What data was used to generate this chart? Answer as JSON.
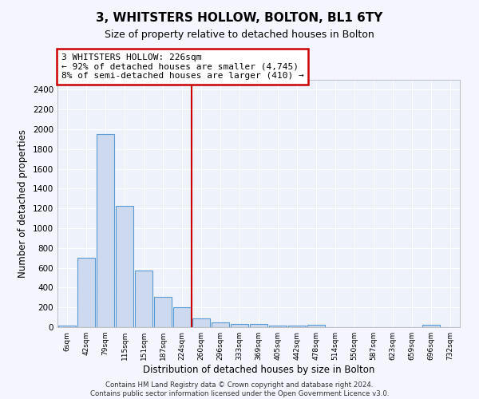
{
  "title": "3, WHITSTERS HOLLOW, BOLTON, BL1 6TY",
  "subtitle": "Size of property relative to detached houses in Bolton",
  "xlabel": "Distribution of detached houses by size in Bolton",
  "ylabel": "Number of detached properties",
  "bar_color": "#ccd9ee",
  "bar_edge_color": "#5b9bd5",
  "background_color": "#eef2fa",
  "grid_color": "#ffffff",
  "annotation_text": "3 WHITSTERS HOLLOW: 226sqm\n← 92% of detached houses are smaller (4,745)\n8% of semi-detached houses are larger (410) →",
  "annotation_box_color": "#ffffff",
  "annotation_box_edge": "#cc0000",
  "vline_color": "#cc0000",
  "vline_x": 6.5,
  "tick_labels": [
    "6sqm",
    "42sqm",
    "79sqm",
    "115sqm",
    "151sqm",
    "187sqm",
    "224sqm",
    "260sqm",
    "296sqm",
    "333sqm",
    "369sqm",
    "405sqm",
    "442sqm",
    "478sqm",
    "514sqm",
    "550sqm",
    "587sqm",
    "623sqm",
    "659sqm",
    "696sqm",
    "732sqm"
  ],
  "bar_heights": [
    20,
    700,
    1950,
    1225,
    575,
    310,
    205,
    85,
    45,
    35,
    35,
    20,
    20,
    25,
    0,
    0,
    0,
    0,
    0,
    25,
    0
  ],
  "ylim": [
    0,
    2500
  ],
  "yticks": [
    0,
    200,
    400,
    600,
    800,
    1000,
    1200,
    1400,
    1600,
    1800,
    2000,
    2200,
    2400
  ],
  "footer_line1": "Contains HM Land Registry data © Crown copyright and database right 2024.",
  "footer_line2": "Contains public sector information licensed under the Open Government Licence v3.0."
}
